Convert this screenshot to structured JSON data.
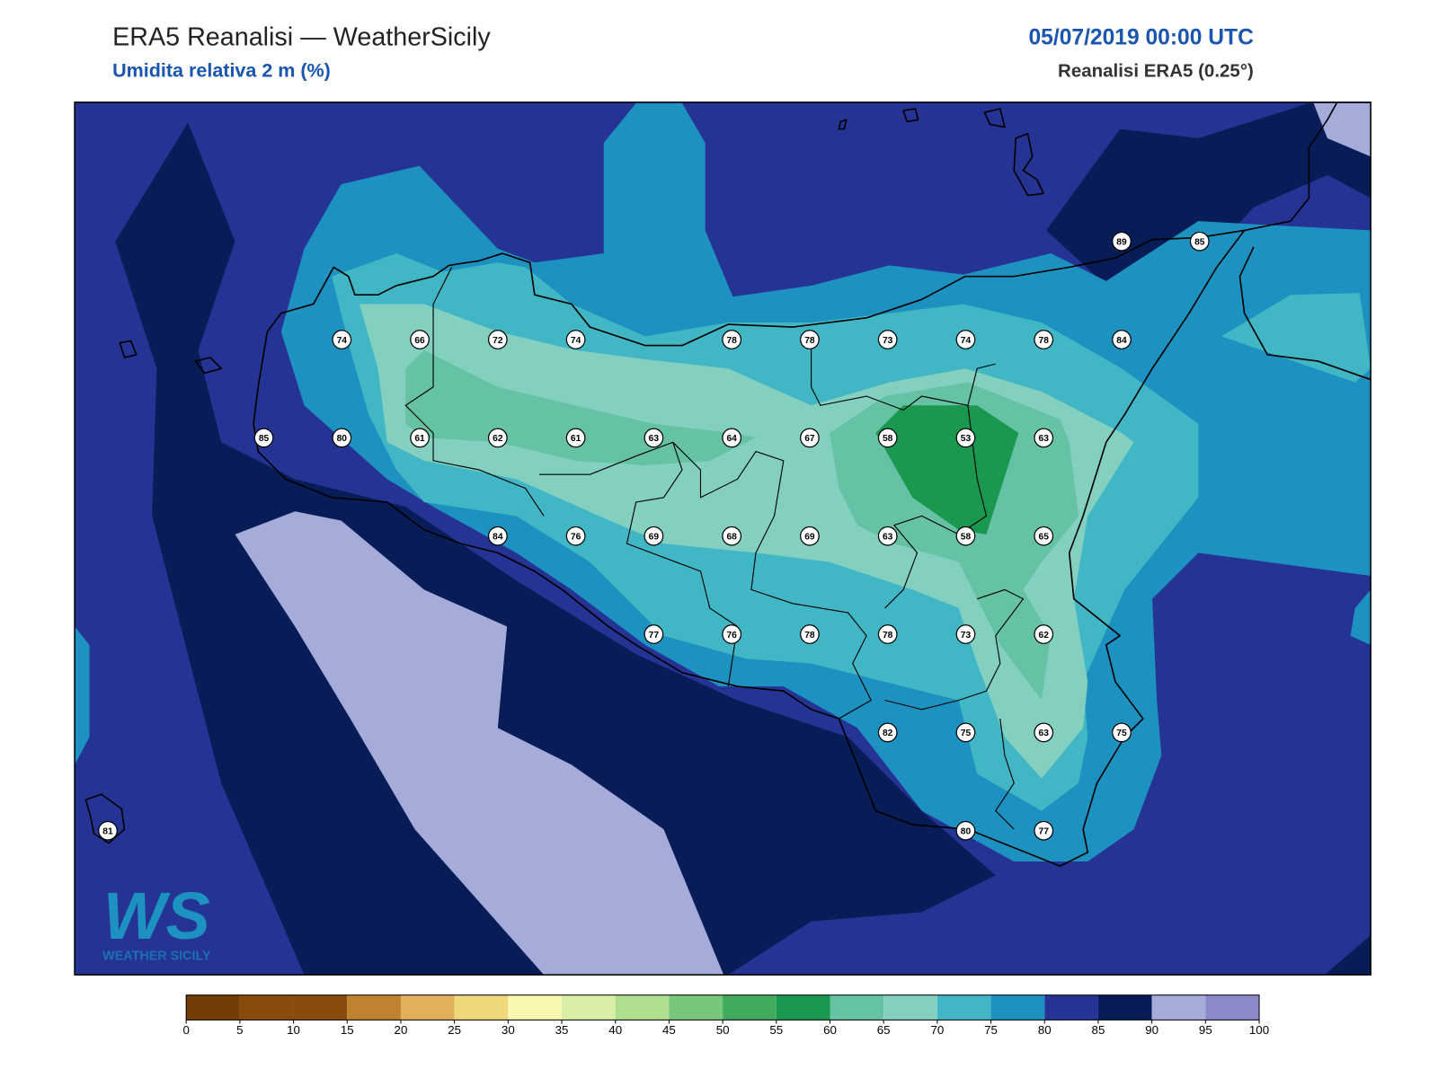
{
  "header": {
    "title": "ERA5 Reanalisi — WeatherSicily",
    "subtitle": "Umidita relativa 2 m (%)",
    "datetime": "05/07/2019 00:00 UTC",
    "source": "Reanalisi ERA5 (0.25°)"
  },
  "station_grid": [
    [
      null,
      null,
      null,
      null,
      null,
      null,
      null,
      null,
      null,
      null,
      null,
      null,
      null,
      89,
      85
    ],
    [
      null,
      null,
      null,
      74,
      66,
      72,
      74,
      null,
      78,
      78,
      73,
      74,
      78,
      84,
      null
    ],
    [
      null,
      null,
      85,
      80,
      61,
      62,
      61,
      63,
      64,
      67,
      58,
      53,
      63,
      null,
      null
    ],
    [
      null,
      null,
      null,
      null,
      null,
      84,
      76,
      69,
      68,
      69,
      63,
      58,
      65,
      null,
      null
    ],
    [
      null,
      null,
      null,
      null,
      null,
      null,
      null,
      77,
      76,
      78,
      78,
      73,
      62,
      null,
      null
    ],
    [
      null,
      null,
      null,
      null,
      null,
      null,
      null,
      null,
      null,
      null,
      82,
      75,
      63,
      75,
      null
    ],
    [
      81,
      null,
      null,
      null,
      null,
      null,
      null,
      null,
      null,
      null,
      null,
      80,
      77,
      null,
      null
    ]
  ],
  "logo": {
    "mark": "WS",
    "caption": "WEATHER SICILY"
  },
  "colorbar": {
    "ticks": [
      0,
      5,
      10,
      15,
      20,
      25,
      30,
      35,
      40,
      45,
      50,
      55,
      60,
      65,
      70,
      75,
      80,
      85,
      90,
      95,
      100
    ],
    "colors": [
      "#733d08",
      "#8a4a0c",
      "#8a4a0c",
      "#c0822e",
      "#e0b05a",
      "#f0d77a",
      "#f7f7b0",
      "#d9efa8",
      "#addf8e",
      "#78c679",
      "#41ab5d",
      "#1a9850",
      "#66c2a4",
      "#83d0c0",
      "#41b6c4",
      "#1d91c0",
      "#253494",
      "#081d58",
      "#a6acda",
      "#8c89c9"
    ]
  }
}
